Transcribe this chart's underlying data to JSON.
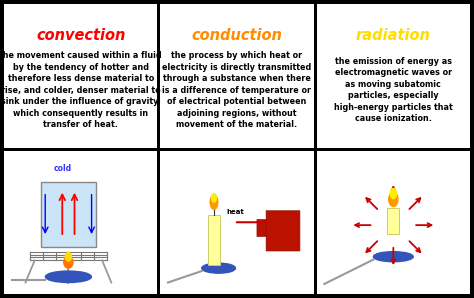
{
  "bg_color": "#000000",
  "cell_bg": "#ffffff",
  "titles": [
    "convection",
    "conduction",
    "radiation"
  ],
  "title_colors": [
    "#ff0000",
    "#ff8c00",
    "#ffdd00"
  ],
  "definitions": [
    "the movement caused within a fluid\nby the tendency of hotter and\ntherefore less dense material to\nrise, and colder, denser material to\nsink under the influence of gravity,\nwhich consequently results in\ntransfer of heat.",
    "the process by which heat or\nelectricity is directly transmitted\nthrough a substance when there\nis a difference of temperature or\nof electrical potential between\nadjoining regions, without\nmovement of the material.",
    "the emission of energy as\nelectromagnetic waves or\nas moving subatomic\nparticles, especially\nhigh-energy particles that\ncause ionization."
  ],
  "def_fontsize": 5.8,
  "title_fontsize": 10.5,
  "brd": 0.008,
  "gp": 0.005
}
